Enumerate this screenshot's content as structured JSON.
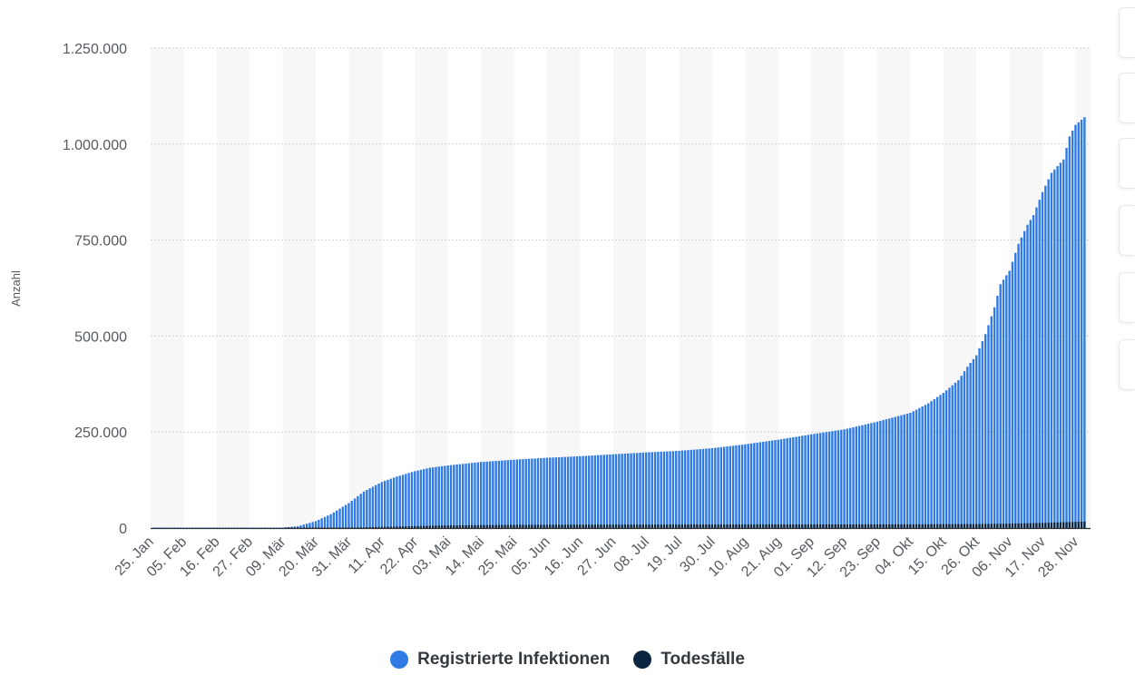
{
  "chart_data": {
    "type": "bar",
    "ylabel": "Anzahl",
    "ylim": [
      0,
      1250000
    ],
    "yticks": [
      0,
      250000,
      500000,
      750000,
      1000000,
      1250000
    ],
    "ytick_labels": [
      "0",
      "250.000",
      "500.000",
      "750.000",
      "1.000.000",
      "1.250.000"
    ],
    "xlim": [
      "2020-01-25",
      "2020-12-03"
    ],
    "xtick_dates": [
      "2020-01-25",
      "2020-02-05",
      "2020-02-16",
      "2020-02-27",
      "2020-03-09",
      "2020-03-20",
      "2020-03-31",
      "2020-04-11",
      "2020-04-22",
      "2020-05-03",
      "2020-05-14",
      "2020-05-25",
      "2020-06-05",
      "2020-06-16",
      "2020-06-27",
      "2020-07-08",
      "2020-07-19",
      "2020-07-30",
      "2020-08-10",
      "2020-08-21",
      "2020-09-01",
      "2020-09-12",
      "2020-09-23",
      "2020-10-04",
      "2020-10-15",
      "2020-10-26",
      "2020-11-06",
      "2020-11-17",
      "2020-11-28"
    ],
    "xtick_labels": [
      "25. Jan",
      "05. Feb",
      "16. Feb",
      "27. Feb",
      "09. Mär",
      "20. Mär",
      "31. Mär",
      "11. Apr",
      "22. Apr",
      "03. Mai",
      "14. Mai",
      "25. Mai",
      "05. Jun",
      "16. Jun",
      "27. Jun",
      "08. Jul",
      "19. Jul",
      "30. Jul",
      "10. Aug",
      "21. Aug",
      "01. Sep",
      "12. Sep",
      "23. Sep",
      "04. Okt",
      "15. Okt",
      "26. Okt",
      "06. Nov",
      "17. Nov",
      "28. Nov"
    ],
    "grid": true,
    "legend_position": "bottom-center",
    "series": [
      {
        "name": "Registrierte Infektionen",
        "color": "#2f7ae5",
        "points": [
          [
            "2020-01-25",
            0
          ],
          [
            "2020-03-01",
            100
          ],
          [
            "2020-03-09",
            1200
          ],
          [
            "2020-03-14",
            4500
          ],
          [
            "2020-03-20",
            18000
          ],
          [
            "2020-03-25",
            36000
          ],
          [
            "2020-03-31",
            65000
          ],
          [
            "2020-04-05",
            95000
          ],
          [
            "2020-04-11",
            120000
          ],
          [
            "2020-04-16",
            134000
          ],
          [
            "2020-04-22",
            148000
          ],
          [
            "2020-04-27",
            157000
          ],
          [
            "2020-05-03",
            163000
          ],
          [
            "2020-05-14",
            172000
          ],
          [
            "2020-05-25",
            178000
          ],
          [
            "2020-06-05",
            183000
          ],
          [
            "2020-06-16",
            187000
          ],
          [
            "2020-06-27",
            192000
          ],
          [
            "2020-07-08",
            197000
          ],
          [
            "2020-07-19",
            201000
          ],
          [
            "2020-07-30",
            208000
          ],
          [
            "2020-08-10",
            218000
          ],
          [
            "2020-08-21",
            230000
          ],
          [
            "2020-09-01",
            244000
          ],
          [
            "2020-09-12",
            257000
          ],
          [
            "2020-09-23",
            277000
          ],
          [
            "2020-10-04",
            300000
          ],
          [
            "2020-10-10",
            325000
          ],
          [
            "2020-10-15",
            352000
          ],
          [
            "2020-10-20",
            385000
          ],
          [
            "2020-10-23",
            420000
          ],
          [
            "2020-10-26",
            450000
          ],
          [
            "2020-10-29",
            505000
          ],
          [
            "2020-11-01",
            575000
          ],
          [
            "2020-11-03",
            635000
          ],
          [
            "2020-11-06",
            670000
          ],
          [
            "2020-11-09",
            740000
          ],
          [
            "2020-11-12",
            790000
          ],
          [
            "2020-11-14",
            815000
          ],
          [
            "2020-11-17",
            875000
          ],
          [
            "2020-11-20",
            925000
          ],
          [
            "2020-11-24",
            960000
          ],
          [
            "2020-11-26",
            1020000
          ],
          [
            "2020-11-28",
            1050000
          ],
          [
            "2020-12-01",
            1070000
          ]
        ]
      },
      {
        "name": "Todesfälle",
        "color": "#0b2640",
        "points": [
          [
            "2020-01-25",
            0
          ],
          [
            "2020-03-09",
            0
          ],
          [
            "2020-03-20",
            100
          ],
          [
            "2020-03-31",
            800
          ],
          [
            "2020-04-11",
            3000
          ],
          [
            "2020-04-22",
            5000
          ],
          [
            "2020-05-03",
            6800
          ],
          [
            "2020-05-25",
            8300
          ],
          [
            "2020-07-08",
            9000
          ],
          [
            "2020-09-01",
            9300
          ],
          [
            "2020-10-04",
            9600
          ],
          [
            "2020-10-26",
            10300
          ],
          [
            "2020-11-06",
            11500
          ],
          [
            "2020-11-17",
            13300
          ],
          [
            "2020-11-28",
            16000
          ],
          [
            "2020-12-01",
            16700
          ]
        ]
      }
    ]
  }
}
